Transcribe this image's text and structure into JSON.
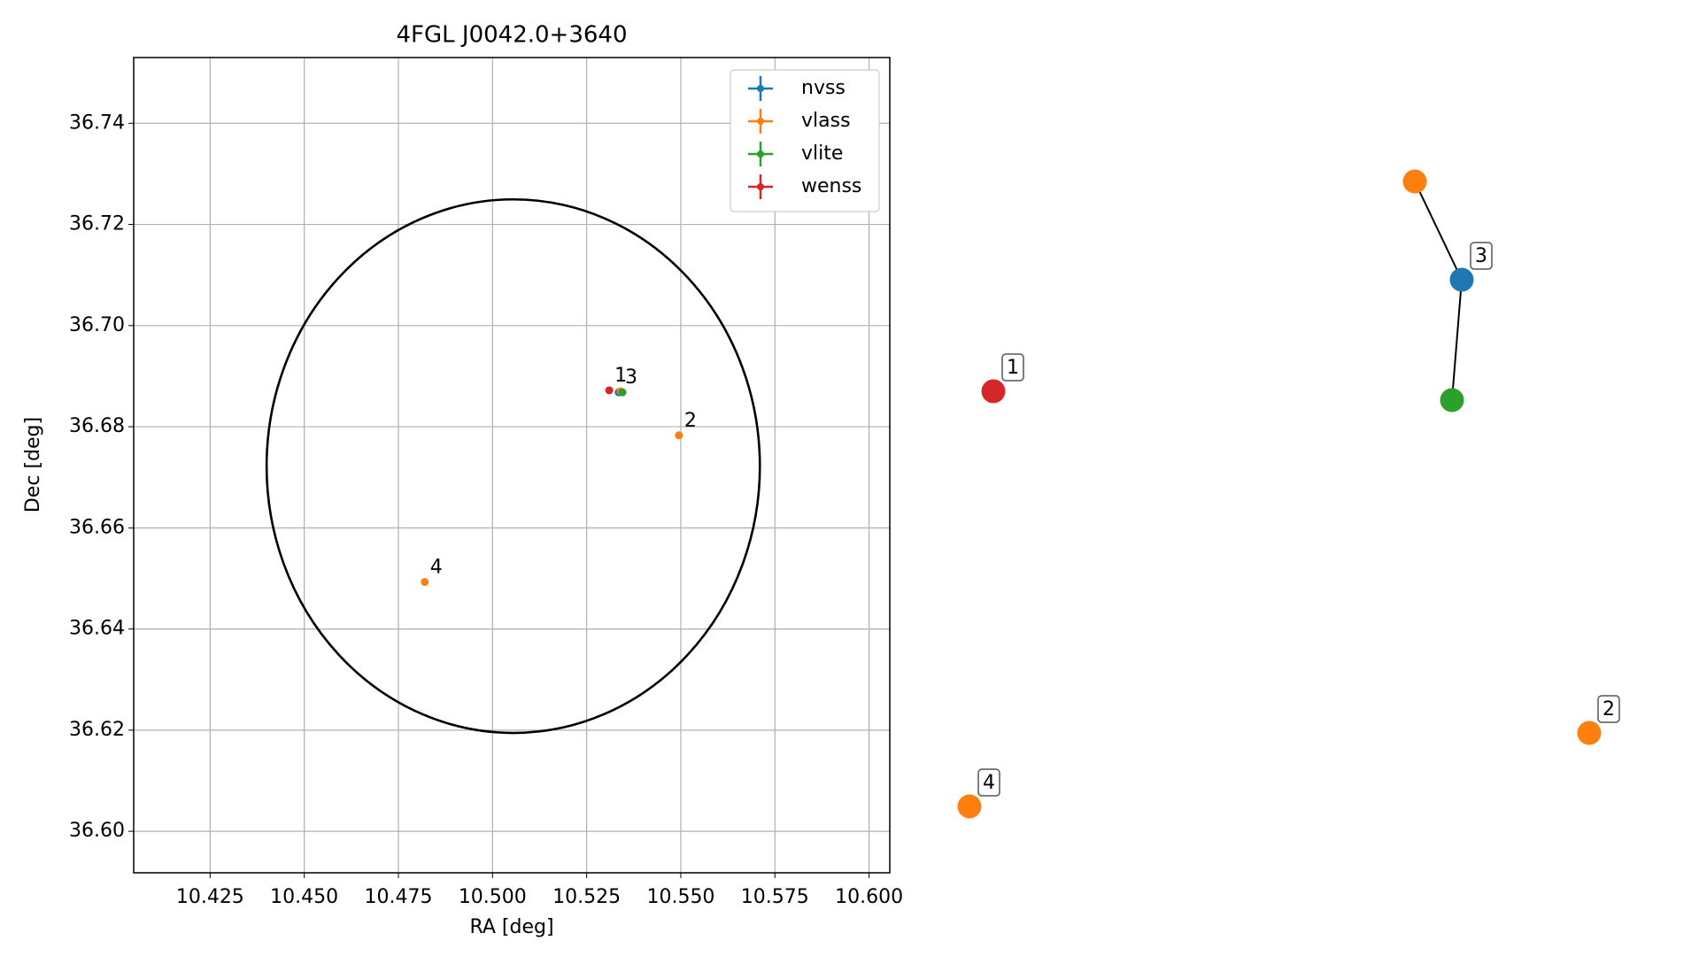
{
  "chart_data": [
    {
      "type": "scatter",
      "title": "4FGL J0042.0+3640",
      "x_label": "RA [deg]",
      "y_label": "Dec [deg]",
      "xlim": [
        10.4047,
        10.6055
      ],
      "ylim": [
        36.5918,
        36.753
      ],
      "xticks": [
        10.425,
        {
          "value": 10.45,
          "label": "10.450"
        },
        10.475,
        {
          "value": 10.5,
          "label": "10.500"
        },
        10.525,
        {
          "value": 10.55,
          "label": "10.550"
        },
        10.575,
        {
          "value": 10.6,
          "label": "10.600"
        }
      ],
      "yticks": [
        {
          "value": 36.6,
          "label": "36.60"
        },
        36.62,
        36.64,
        36.66,
        36.68,
        {
          "value": 36.7,
          "label": "36.70"
        },
        36.72,
        36.74
      ],
      "grid": true,
      "legend": "upper right",
      "series": [
        {
          "name": "nvss",
          "color": "#1f77b4",
          "x": [
            10.5335
          ],
          "y": [
            36.6868
          ]
        },
        {
          "name": "vlass",
          "color": "#ff7f0e",
          "x": [
            10.534,
            10.5495,
            10.482
          ],
          "y": [
            36.687,
            36.6783,
            36.6493
          ]
        },
        {
          "name": "vlite",
          "color": "#2ca02c",
          "x": [
            10.5345
          ],
          "y": [
            36.6868
          ]
        },
        {
          "name": "wenss",
          "color": "#d62728",
          "x": [
            10.531
          ],
          "y": [
            36.6872
          ]
        }
      ],
      "annotations": [
        {
          "text": "1",
          "x": 10.531,
          "y": 36.6872
        },
        {
          "text": "3",
          "x": 10.5338,
          "y": 36.6868
        },
        {
          "text": "2",
          "x": 10.5495,
          "y": 36.6783
        },
        {
          "text": "4",
          "x": 10.482,
          "y": 36.6493
        }
      ],
      "circle": {
        "center": [
          10.5055,
          36.6722
        ],
        "radius": [
          0.0655,
          0.05275
        ]
      }
    },
    {
      "type": "network",
      "nodes": [
        {
          "label": "1",
          "color": "#d62728"
        },
        {
          "label": "2",
          "color": "#ff7f0e"
        },
        {
          "label": "3",
          "color": "#1f77b4"
        },
        {
          "label": null,
          "color": "#ff7f0e"
        },
        {
          "label": null,
          "color": "#2ca02c"
        },
        {
          "label": "4",
          "color": "#ff7f0e"
        }
      ],
      "edges": [
        [
          2,
          3
        ],
        [
          2,
          4
        ]
      ]
    }
  ]
}
